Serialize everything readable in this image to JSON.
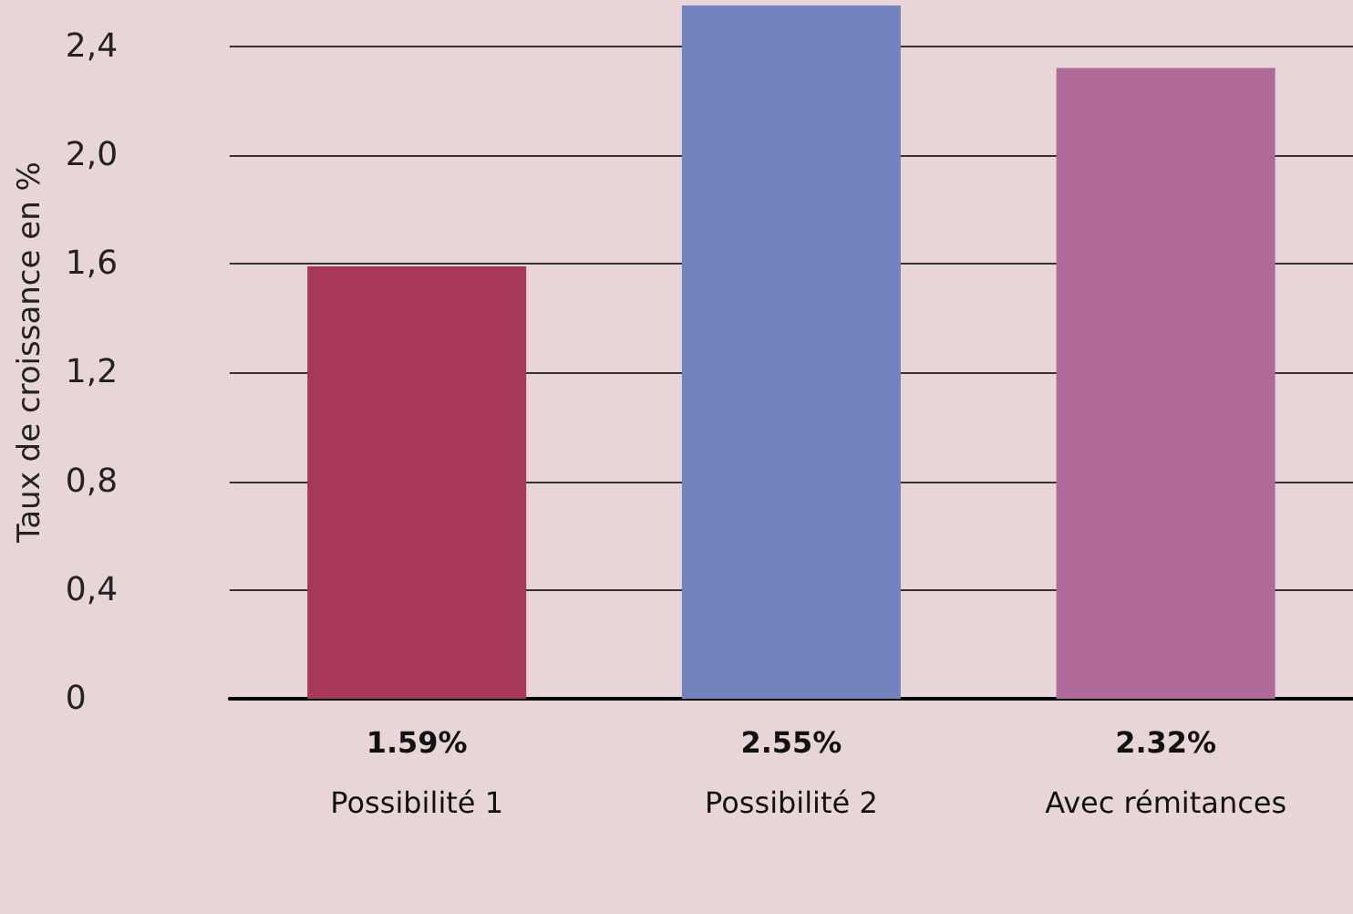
{
  "chart_data": {
    "type": "bar",
    "ylabel": "Taux de croissance en %",
    "categories": [
      "Possibilité 1",
      "Possibilité 2",
      "Avec rémitances"
    ],
    "values": [
      1.59,
      2.55,
      2.32
    ],
    "colors": [
      "#a8385a",
      "#7283bd",
      "#b06a9a"
    ],
    "value_labels": [
      "1.59%",
      "2.55%",
      "2.32%"
    ],
    "yticks": [
      0,
      {
        "value": 0.4,
        "label": "0,4"
      },
      {
        "value": 0.8,
        "label": "0,8"
      },
      {
        "value": 1.2,
        "label": "1,2"
      },
      {
        "value": 1.6,
        "label": "1,6"
      },
      {
        "value": 2.0,
        "label": "2,0"
      },
      {
        "value": 2.4,
        "label": "2,4"
      }
    ],
    "ylim": [
      0,
      2.55
    ],
    "grid": "y"
  }
}
